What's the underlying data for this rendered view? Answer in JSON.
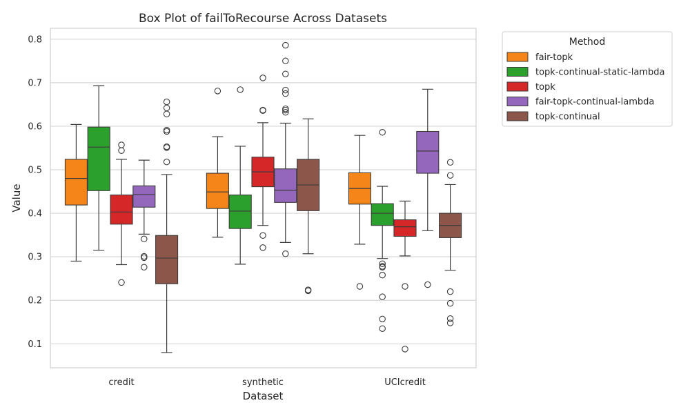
{
  "chart_data": {
    "type": "box",
    "title": "Box Plot of failToRecourse Across Datasets",
    "xlabel": "Dataset",
    "ylabel": "Value",
    "ylim": [
      0.045,
      0.825
    ],
    "yticks": [
      0.1,
      0.2,
      0.3,
      0.4,
      0.5,
      0.6,
      0.7,
      0.8
    ],
    "grid": "horizontal",
    "legend": {
      "title": "Method",
      "placement": "outside-top-right"
    },
    "categories": [
      "credit",
      "synthetic",
      "UCIcredit"
    ],
    "series": [
      {
        "name": "fair-topk",
        "color": "#f58518",
        "boxes": [
          {
            "whisker_low": 0.29,
            "q1": 0.419,
            "median": 0.48,
            "q3": 0.524,
            "whisker_high": 0.604,
            "outliers": []
          },
          {
            "whisker_low": 0.345,
            "q1": 0.411,
            "median": 0.449,
            "q3": 0.492,
            "whisker_high": 0.576,
            "outliers": [
              0.681
            ]
          },
          {
            "whisker_low": 0.329,
            "q1": 0.421,
            "median": 0.457,
            "q3": 0.493,
            "whisker_high": 0.579,
            "outliers": [
              0.232
            ]
          }
        ]
      },
      {
        "name": "topk-continual-static-lambda",
        "color": "#2ca02c",
        "boxes": [
          {
            "whisker_low": 0.315,
            "q1": 0.452,
            "median": 0.552,
            "q3": 0.598,
            "whisker_high": 0.693,
            "outliers": []
          },
          {
            "whisker_low": 0.283,
            "q1": 0.365,
            "median": 0.405,
            "q3": 0.442,
            "whisker_high": 0.554,
            "outliers": [
              0.684
            ]
          },
          {
            "whisker_low": 0.296,
            "q1": 0.372,
            "median": 0.4,
            "q3": 0.422,
            "whisker_high": 0.462,
            "outliers": [
              0.586,
              0.284,
              0.278,
              0.276,
              0.258,
              0.208,
              0.157,
              0.135
            ]
          }
        ]
      },
      {
        "name": "topk",
        "color": "#d62728",
        "boxes": [
          {
            "whisker_low": 0.282,
            "q1": 0.375,
            "median": 0.403,
            "q3": 0.442,
            "whisker_high": 0.524,
            "outliers": [
              0.557,
              0.544,
              0.241
            ]
          },
          {
            "whisker_low": 0.372,
            "q1": 0.461,
            "median": 0.495,
            "q3": 0.529,
            "whisker_high": 0.608,
            "outliers": [
              0.711,
              0.637,
              0.636,
              0.349,
              0.321
            ]
          },
          {
            "whisker_low": 0.302,
            "q1": 0.347,
            "median": 0.369,
            "q3": 0.385,
            "whisker_high": 0.428,
            "outliers": [
              0.232,
              0.088
            ]
          }
        ]
      },
      {
        "name": "fair-topk-continual-lambda",
        "color": "#9467bd",
        "boxes": [
          {
            "whisker_low": 0.352,
            "q1": 0.414,
            "median": 0.443,
            "q3": 0.463,
            "whisker_high": 0.522,
            "outliers": [
              0.341,
              0.301,
              0.298,
              0.276
            ]
          },
          {
            "whisker_low": 0.333,
            "q1": 0.425,
            "median": 0.453,
            "q3": 0.502,
            "whisker_high": 0.607,
            "outliers": [
              0.786,
              0.75,
              0.72,
              0.683,
              0.675,
              0.64,
              0.637,
              0.632,
              0.307
            ]
          },
          {
            "whisker_low": 0.36,
            "q1": 0.492,
            "median": 0.543,
            "q3": 0.588,
            "whisker_high": 0.685,
            "outliers": [
              0.236
            ]
          }
        ]
      },
      {
        "name": "topk-continual",
        "color": "#8c564b",
        "boxes": [
          {
            "whisker_low": 0.08,
            "q1": 0.238,
            "median": 0.297,
            "q3": 0.349,
            "whisker_high": 0.489,
            "outliers": [
              0.656,
              0.642,
              0.628,
              0.591,
              0.588,
              0.553,
              0.551,
              0.518
            ]
          },
          {
            "whisker_low": 0.307,
            "q1": 0.406,
            "median": 0.465,
            "q3": 0.524,
            "whisker_high": 0.617,
            "outliers": [
              0.224,
              0.222
            ]
          },
          {
            "whisker_low": 0.269,
            "q1": 0.344,
            "median": 0.372,
            "q3": 0.4,
            "whisker_high": 0.466,
            "outliers": [
              0.517,
              0.487,
              0.22,
              0.193,
              0.158,
              0.148
            ]
          }
        ]
      }
    ]
  }
}
